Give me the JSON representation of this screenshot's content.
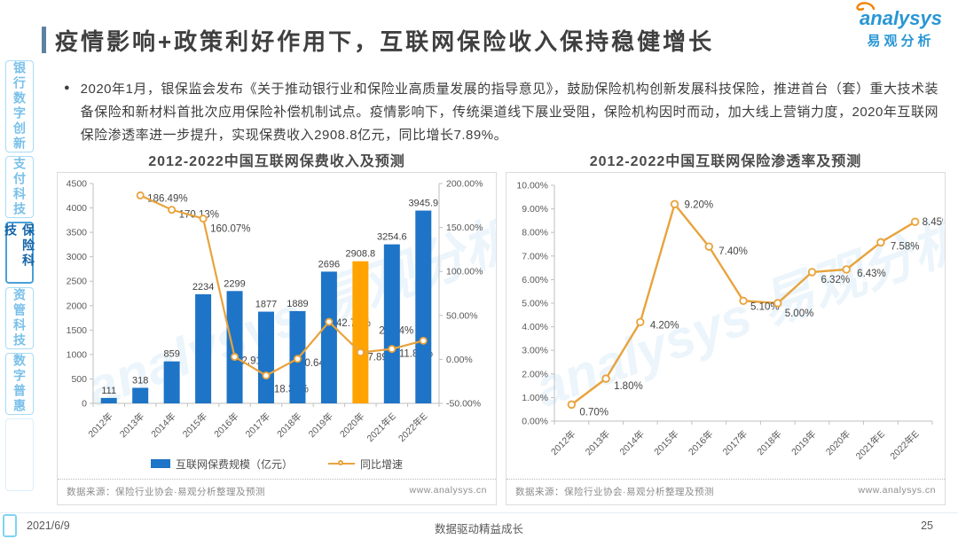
{
  "header": {
    "title": "疫情影响+政策利好作用下，互联网保险收入保持稳健增长",
    "logo_text": "analysys",
    "logo_subtext": "易观分析"
  },
  "sidebar": {
    "items": [
      {
        "label": "银行数字创新",
        "active": false
      },
      {
        "label": "支付科技",
        "active": false
      },
      {
        "label": "保险科技",
        "active": true
      },
      {
        "label": "资管科技",
        "active": false
      },
      {
        "label": "数字普惠",
        "active": false
      }
    ]
  },
  "bullet": {
    "text": "2020年1月，银保监会发布《关于推动银行业和保险业高质量发展的指导意见》，鼓励保险机构创新发展科技保险，推进首台（套）重大技术装备保险和新材料首批次应用保险补偿机制试点。疫情影响下，传统渠道线下展业受阻，保险机构因时而动，加大线上营销力度，2020年互联网保险渗透率进一步提升，实现保费收入2908.8亿元，同比增长7.89%。"
  },
  "watermark": "analysys 易观分析",
  "source_note": {
    "label": "数据来源：保险行业协会·易观分析整理及预测",
    "site": "www.analysys.cn"
  },
  "footer": {
    "date": "2021/6/9",
    "slogan": "数据驱动精益成长",
    "page": "25"
  },
  "chart_data": [
    {
      "type": "bar",
      "title": "2012-2022中国互联网保费收入及预测",
      "categories": [
        "2012年",
        "2013年",
        "2014年",
        "2015年",
        "2016年",
        "2017年",
        "2018年",
        "2019年",
        "2020年",
        "2021年E",
        "2022年E"
      ],
      "series": [
        {
          "name": "互联网保费规模（亿元）",
          "type": "bar",
          "values": [
            111,
            318,
            859,
            2234,
            2299,
            1877,
            1889,
            2696,
            2908.8,
            3254.6,
            3945.9
          ],
          "labels": [
            "111",
            "318",
            "859",
            "2234",
            "2299",
            "1877",
            "1889",
            "2696",
            "2908.8",
            "3254.6",
            "3945.9"
          ],
          "highlight_index": 8
        },
        {
          "name": "同比增速",
          "type": "line",
          "values": [
            null,
            186.49,
            170.13,
            160.07,
            2.91,
            -18.36,
            0.64,
            42.72,
            7.89,
            11.89,
            21.24
          ],
          "labels": [
            "",
            "186.49%",
            "170.13%",
            "160.07%",
            "2.91%",
            "-18.36%",
            "0.64%",
            "42.72%",
            "7.89%",
            "11.89%",
            "21.24%"
          ]
        }
      ],
      "left_axis": {
        "ticks": [
          "0",
          "500",
          "1000",
          "1500",
          "2000",
          "2500",
          "3000",
          "3500",
          "4000",
          "4500"
        ],
        "min": 0,
        "max": 4500
      },
      "right_axis": {
        "ticks": [
          "-50.00%",
          "0.00%",
          "50.00%",
          "100.00%",
          "150.00%",
          "200.00%"
        ],
        "min": -50,
        "max": 200
      },
      "legend_position": "bottom",
      "grid": false,
      "colors": {
        "bar": "#1e74c6",
        "bar_highlight": "#ffa300",
        "line": "#e8a33c"
      }
    },
    {
      "type": "line",
      "title": "2012-2022中国互联网保险渗透率及预测",
      "categories": [
        "2012年",
        "2013年",
        "2014年",
        "2015年",
        "2016年",
        "2017年",
        "2018年",
        "2019年",
        "2020年",
        "2021年E",
        "2022年E"
      ],
      "values": [
        0.7,
        1.8,
        4.2,
        9.2,
        7.4,
        5.1,
        5.0,
        6.32,
        6.43,
        7.58,
        8.45
      ],
      "labels": [
        "0.70%",
        "1.80%",
        "4.20%",
        "9.20%",
        "7.40%",
        "5.10%",
        "5.00%",
        "6.32%",
        "6.43%",
        "7.58%",
        "8.45%"
      ],
      "left_axis": {
        "ticks": [
          "0.00%",
          "1.00%",
          "2.00%",
          "3.00%",
          "4.00%",
          "5.00%",
          "6.00%",
          "7.00%",
          "8.00%",
          "9.00%",
          "10.00%"
        ],
        "min": 0,
        "max": 10
      },
      "grid": false,
      "colors": {
        "line": "#e8a33c"
      }
    }
  ]
}
